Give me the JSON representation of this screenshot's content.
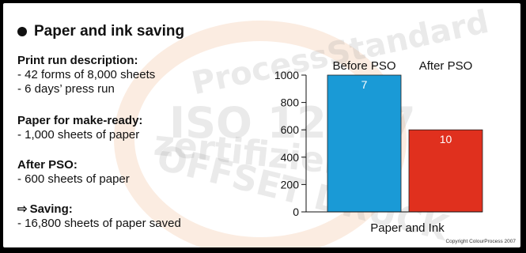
{
  "heading": "Paper and ink saving",
  "sections": [
    {
      "title": "Print run description:",
      "lines": [
        "- 42 forms of 8,000 sheets",
        "- 6 days’ press run"
      ]
    },
    {
      "title": "Paper for make-ready:",
      "lines": [
        "- 1,000 sheets of paper"
      ]
    },
    {
      "title": "After PSO:",
      "lines": [
        "- 600 sheets of paper"
      ]
    },
    {
      "title": "Saving:",
      "icon": "arrow-right-icon",
      "lines": [
        "- 16,800 sheets of paper saved"
      ]
    }
  ],
  "watermark": [
    "ProcessStandard",
    "ISO 12647",
    "zertifiziert",
    "OFFSET DRUCK"
  ],
  "copyright": "Copyright ColourProcess 2007",
  "colors": {
    "before": "#1a9ad6",
    "after": "#e0301e",
    "background": "#000000"
  },
  "chart_data": {
    "type": "bar",
    "categories": [
      "Before PSO",
      "After PSO"
    ],
    "values": [
      1000,
      600
    ],
    "data_labels": [
      "7",
      "10"
    ],
    "xlabel": "Paper and Ink",
    "ylabel": "",
    "ylim": [
      0,
      1000
    ],
    "yticks": [
      0,
      200,
      400,
      600,
      800,
      1000
    ],
    "colors": [
      "#1a9ad6",
      "#e0301e"
    ],
    "grid": false
  }
}
